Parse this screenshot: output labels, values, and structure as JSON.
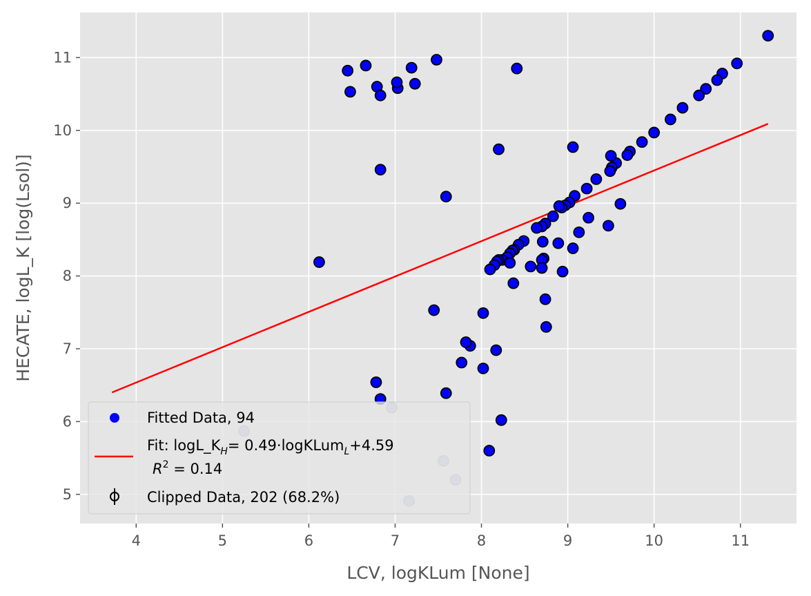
{
  "chart_data": {
    "type": "scatter",
    "xlabel": "LCV, logKLum [None]",
    "ylabel": "HECATE, logL_K [log(Lsol)]",
    "xlim": [
      3.35,
      11.65
    ],
    "ylim": [
      4.6,
      11.62
    ],
    "xticks": [
      4,
      5,
      6,
      7,
      8,
      9,
      10,
      11
    ],
    "yticks": [
      5,
      6,
      7,
      8,
      9,
      10,
      11
    ],
    "grid": true,
    "legend_placement": "lower-left",
    "colors": {
      "background": "#e5e5e5",
      "grid": "#ffffff",
      "fitted_point": "#0000ff",
      "point_edge": "#000000",
      "fit_line": "#ff0000",
      "clipped_point": "#b3b3d9",
      "clipped_edge": "#9999a8"
    },
    "series": [
      {
        "name": "Fitted Data, 94",
        "kind": "scatter",
        "points": [
          [
            11.32,
            11.3
          ],
          [
            10.96,
            10.92
          ],
          [
            10.79,
            10.78
          ],
          [
            10.73,
            10.69
          ],
          [
            10.6,
            10.57
          ],
          [
            10.52,
            10.48
          ],
          [
            10.33,
            10.31
          ],
          [
            10.19,
            10.15
          ],
          [
            10.0,
            9.97
          ],
          [
            9.86,
            9.84
          ],
          [
            9.72,
            9.71
          ],
          [
            9.69,
            9.66
          ],
          [
            9.56,
            9.55
          ],
          [
            9.51,
            9.49
          ],
          [
            9.49,
            9.44
          ],
          [
            9.5,
            9.65
          ],
          [
            9.33,
            9.33
          ],
          [
            9.22,
            9.2
          ],
          [
            9.08,
            9.1
          ],
          [
            9.02,
            9.01
          ],
          [
            8.97,
            8.97
          ],
          [
            8.93,
            8.94
          ],
          [
            8.9,
            8.96
          ],
          [
            8.83,
            8.82
          ],
          [
            8.74,
            8.72
          ],
          [
            8.7,
            8.68
          ],
          [
            8.64,
            8.66
          ],
          [
            9.06,
            9.77
          ],
          [
            9.61,
            8.99
          ],
          [
            9.24,
            8.8
          ],
          [
            9.13,
            8.6
          ],
          [
            9.47,
            8.69
          ],
          [
            9.06,
            8.38
          ],
          [
            8.89,
            8.45
          ],
          [
            8.71,
            8.47
          ],
          [
            8.49,
            8.48
          ],
          [
            8.43,
            8.43
          ],
          [
            8.38,
            8.36
          ],
          [
            8.36,
            8.35
          ],
          [
            8.33,
            8.31
          ],
          [
            8.3,
            8.26
          ],
          [
            8.24,
            8.22
          ],
          [
            8.2,
            8.22
          ],
          [
            8.18,
            8.2
          ],
          [
            8.15,
            8.15
          ],
          [
            8.1,
            8.09
          ],
          [
            8.33,
            8.18
          ],
          [
            8.57,
            8.13
          ],
          [
            8.72,
            8.24
          ],
          [
            8.7,
            8.22
          ],
          [
            8.7,
            8.11
          ],
          [
            8.94,
            8.06
          ],
          [
            8.37,
            7.9
          ],
          [
            8.74,
            7.68
          ],
          [
            8.75,
            7.3
          ],
          [
            8.02,
            7.49
          ],
          [
            8.17,
            6.98
          ],
          [
            7.87,
            7.04
          ],
          [
            7.82,
            7.09
          ],
          [
            7.77,
            6.81
          ],
          [
            8.02,
            6.73
          ],
          [
            7.45,
            7.53
          ],
          [
            7.59,
            6.39
          ],
          [
            8.23,
            6.02
          ],
          [
            8.09,
            5.6
          ],
          [
            8.2,
            9.74
          ],
          [
            7.59,
            9.09
          ],
          [
            8.41,
            10.85
          ],
          [
            7.48,
            10.97
          ],
          [
            7.23,
            10.64
          ],
          [
            7.19,
            10.86
          ],
          [
            7.03,
            10.58
          ],
          [
            7.02,
            10.66
          ],
          [
            6.79,
            10.6
          ],
          [
            6.83,
            10.48
          ],
          [
            6.66,
            10.89
          ],
          [
            6.45,
            10.82
          ],
          [
            6.48,
            10.53
          ],
          [
            6.83,
            9.46
          ],
          [
            6.12,
            8.19
          ],
          [
            6.78,
            6.54
          ],
          [
            6.83,
            6.31
          ]
        ]
      },
      {
        "name": "Fit: logL_K_H= 0.49·logKLum_L+4.59",
        "kind": "line",
        "r_squared_label": "R² = 0.14",
        "points": [
          [
            3.72,
            6.4
          ],
          [
            11.32,
            10.09
          ]
        ]
      },
      {
        "name": "Clipped Data, 202 (68.2%)",
        "kind": "scatter-errorbar",
        "points": [
          [
            5.25,
            5.87
          ],
          [
            6.96,
            6.19
          ],
          [
            7.16,
            4.91
          ],
          [
            7.56,
            5.46
          ],
          [
            7.7,
            5.2
          ]
        ]
      }
    ]
  },
  "legend": {
    "fitted_label": "Fitted Data, 94",
    "fit_label_main": "Fit: logL_K",
    "fit_label_sub_h": "H",
    "fit_label_mid": "= 0.49·logKLum",
    "fit_label_sub_l": "L",
    "fit_label_end": "+4.59",
    "fit_r2_r": "R",
    "fit_r2_sup": "2",
    "fit_r2_value": " =  0.14",
    "clipped_label": "Clipped Data, 202 (68.2%)"
  }
}
